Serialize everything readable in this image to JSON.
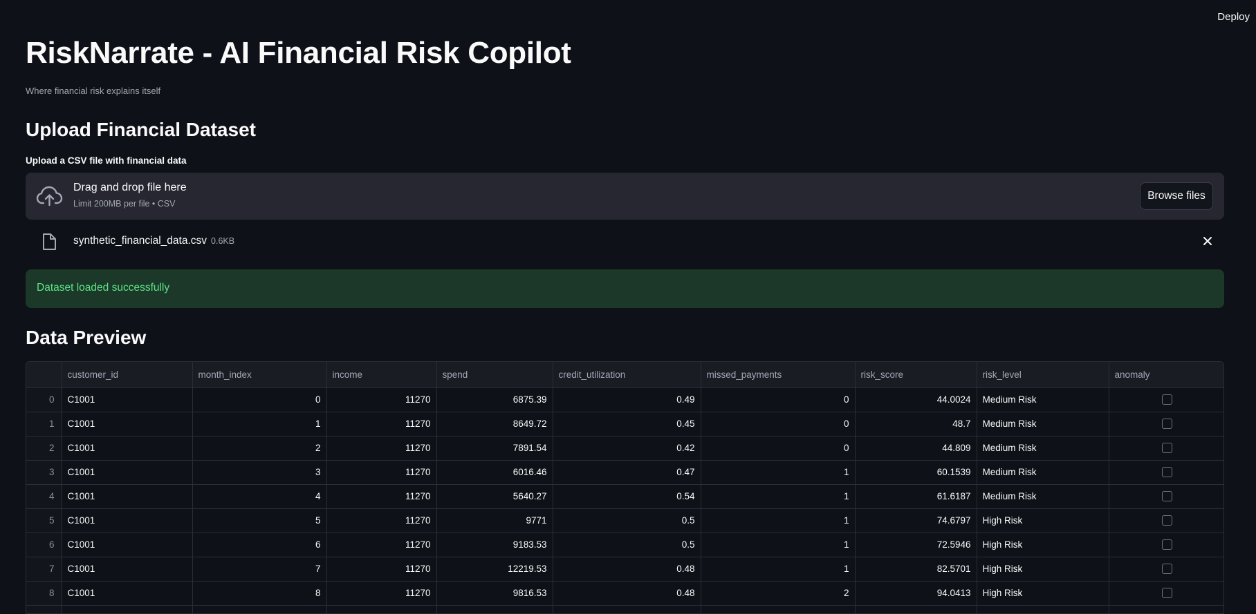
{
  "header": {
    "deploy_label": "Deploy"
  },
  "page": {
    "title": "RiskNarrate - AI Financial Risk Copilot",
    "subtitle": "Where financial risk explains itself"
  },
  "upload": {
    "heading": "Upload Financial Dataset",
    "label": "Upload a CSV file with financial data",
    "drop_title": "Drag and drop file here",
    "drop_limit": "Limit 200MB per file • CSV",
    "browse_label": "Browse files",
    "file_name": "synthetic_financial_data.csv",
    "file_size": "0.6KB",
    "success_message": "Dataset loaded successfully"
  },
  "preview": {
    "heading": "Data Preview",
    "columns": [
      "customer_id",
      "month_index",
      "income",
      "spend",
      "credit_utilization",
      "missed_payments",
      "risk_score",
      "risk_level",
      "anomaly"
    ],
    "rows": [
      {
        "idx": "0",
        "customer_id": "C1001",
        "month_index": "0",
        "income": "11270",
        "spend": "6875.39",
        "credit_utilization": "0.49",
        "missed_payments": "0",
        "risk_score": "44.0024",
        "risk_level": "Medium Risk"
      },
      {
        "idx": "1",
        "customer_id": "C1001",
        "month_index": "1",
        "income": "11270",
        "spend": "8649.72",
        "credit_utilization": "0.45",
        "missed_payments": "0",
        "risk_score": "48.7",
        "risk_level": "Medium Risk"
      },
      {
        "idx": "2",
        "customer_id": "C1001",
        "month_index": "2",
        "income": "11270",
        "spend": "7891.54",
        "credit_utilization": "0.42",
        "missed_payments": "0",
        "risk_score": "44.809",
        "risk_level": "Medium Risk"
      },
      {
        "idx": "3",
        "customer_id": "C1001",
        "month_index": "3",
        "income": "11270",
        "spend": "6016.46",
        "credit_utilization": "0.47",
        "missed_payments": "1",
        "risk_score": "60.1539",
        "risk_level": "Medium Risk"
      },
      {
        "idx": "4",
        "customer_id": "C1001",
        "month_index": "4",
        "income": "11270",
        "spend": "5640.27",
        "credit_utilization": "0.54",
        "missed_payments": "1",
        "risk_score": "61.6187",
        "risk_level": "Medium Risk"
      },
      {
        "idx": "5",
        "customer_id": "C1001",
        "month_index": "5",
        "income": "11270",
        "spend": "9771",
        "credit_utilization": "0.5",
        "missed_payments": "1",
        "risk_score": "74.6797",
        "risk_level": "High Risk"
      },
      {
        "idx": "6",
        "customer_id": "C1001",
        "month_index": "6",
        "income": "11270",
        "spend": "9183.53",
        "credit_utilization": "0.5",
        "missed_payments": "1",
        "risk_score": "72.5946",
        "risk_level": "High Risk"
      },
      {
        "idx": "7",
        "customer_id": "C1001",
        "month_index": "7",
        "income": "11270",
        "spend": "12219.53",
        "credit_utilization": "0.48",
        "missed_payments": "1",
        "risk_score": "82.5701",
        "risk_level": "High Risk"
      },
      {
        "idx": "8",
        "customer_id": "C1001",
        "month_index": "8",
        "income": "11270",
        "spend": "9816.53",
        "credit_utilization": "0.48",
        "missed_payments": "2",
        "risk_score": "94.0413",
        "risk_level": "High Risk"
      }
    ]
  },
  "icons": {
    "upload": "cloud-upload-icon",
    "file": "file-icon",
    "close": "close-icon",
    "checkbox": "checkbox-unchecked-icon"
  },
  "colors": {
    "background": "#0e1117",
    "dropzone": "#262730",
    "success_bg": "#1c3828",
    "success_text": "#5ce488"
  }
}
